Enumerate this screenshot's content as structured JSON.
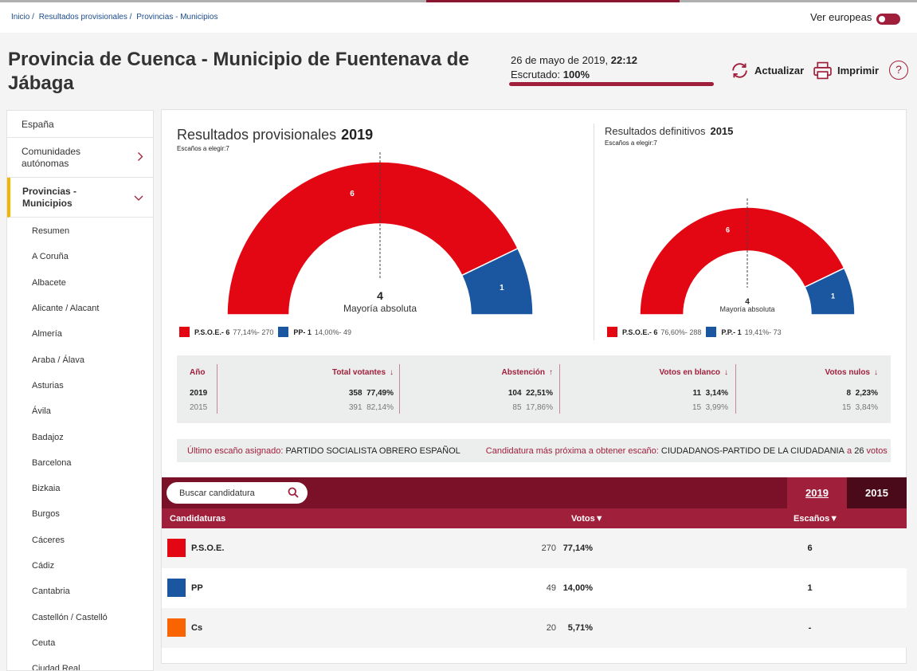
{
  "breadcrumb": [
    "Inicio /",
    "Resultados provisionales /",
    "Provincias - Municipios"
  ],
  "toggle_label": "Ver europeas",
  "title": "Provincia de Cuenca - Municipio de Fuentenava de Jábaga",
  "status": {
    "date": "26 de mayo de 2019,",
    "time": "22:12",
    "escrutado_label": "Escrutado:",
    "escrutado_value": "100%",
    "progress_fraction": 1.0
  },
  "tools": {
    "refresh": "Actualizar",
    "print": "Imprimir",
    "help": "?"
  },
  "sidebar": {
    "items": [
      "España",
      "Comunidades autónomas",
      "Provincias - Municipios"
    ],
    "subitems": [
      "Resumen",
      "A Coruña",
      "Albacete",
      "Alicante / Alacant",
      "Almería",
      "Araba / Álava",
      "Asturias",
      "Ávila",
      "Badajoz",
      "Barcelona",
      "Bizkaia",
      "Burgos",
      "Cáceres",
      "Cádiz",
      "Cantabria",
      "Castellón / Castelló",
      "Ceuta",
      "Ciudad Real"
    ]
  },
  "chart_data": [
    {
      "type": "pie",
      "subtype": "hemicycle",
      "title": "Resultados provisionales",
      "year": "2019",
      "subtitle": "Escaños a elegir:7",
      "center_value": "4",
      "center_label": "Mayoría absoluta",
      "series": [
        {
          "name": "P.S.O.E.",
          "seats": 6,
          "percent": "77,14%",
          "votes": 270,
          "color": "#e30613"
        },
        {
          "name": "PP",
          "seats": 1,
          "percent": "14,00%",
          "votes": 49,
          "color": "#1a57a0"
        }
      ],
      "legend": [
        {
          "label": "P.S.O.E.- 6",
          "detail": "77,14%- 270",
          "color": "#e30613"
        },
        {
          "label": "PP- 1",
          "detail": "14,00%- 49",
          "color": "#1a57a0"
        }
      ]
    },
    {
      "type": "pie",
      "subtype": "hemicycle",
      "title": "Resultados definitivos",
      "year": "2015",
      "subtitle": "Escaños a elegir:7",
      "center_value": "4",
      "center_label": "Mayoría absoluta",
      "series": [
        {
          "name": "P.S.O.E.",
          "seats": 6,
          "percent": "76,60%",
          "votes": 288,
          "color": "#e30613"
        },
        {
          "name": "P.P.",
          "seats": 1,
          "percent": "19,41%",
          "votes": 73,
          "color": "#1a57a0"
        }
      ],
      "legend": [
        {
          "label": "P.S.O.E.- 6",
          "detail": "76,60%- 288",
          "color": "#e30613"
        },
        {
          "label": "P.P.- 1",
          "detail": "19,41%- 73",
          "color": "#1a57a0"
        }
      ]
    }
  ],
  "stats": {
    "headers": {
      "year": "Año",
      "votantes": "Total votantes",
      "abstencion": "Abstención",
      "blanco": "Votos en blanco",
      "nulos": "Votos nulos"
    },
    "rows": [
      {
        "year": "2019",
        "votantes_n": "358",
        "votantes_p": "77,49%",
        "abst_n": "104",
        "abst_p": "22,51%",
        "blanco_n": "11",
        "blanco_p": "3,14%",
        "nulos_n": "8",
        "nulos_p": "2,23%"
      },
      {
        "year": "2015",
        "votantes_n": "391",
        "votantes_p": "82,14%",
        "abst_n": "85",
        "abst_p": "17,86%",
        "blanco_n": "15",
        "blanco_p": "3,99%",
        "nulos_n": "15",
        "nulos_p": "3,84%"
      }
    ]
  },
  "info": {
    "last_label": "Último escaño asignado:",
    "last_value": "PARTIDO SOCIALISTA OBRERO ESPAÑOL",
    "next_label": "Candidatura más próxima a obtener escaño:",
    "next_value": "CIUDADANOS-PARTIDO DE LA CIUDADANIA",
    "next_mid": "a",
    "next_votes": "26",
    "next_votes_label": "votos"
  },
  "results": {
    "search_placeholder": "Buscar candidatura",
    "year_active": "2019",
    "year_other": "2015",
    "col_candidaturas": "Candidaturas",
    "col_votos": "Votos▼",
    "col_escanos": "Escaños▼",
    "rows": [
      {
        "name": "P.S.O.E.",
        "votes": "270",
        "percent": "77,14%",
        "seats": "6",
        "color": "#e30613"
      },
      {
        "name": "PP",
        "votes": "49",
        "percent": "14,00%",
        "seats": "1",
        "color": "#1a57a0"
      },
      {
        "name": "Cs",
        "votes": "20",
        "percent": "5,71%",
        "seats": "-",
        "color": "#fa6400"
      }
    ]
  }
}
